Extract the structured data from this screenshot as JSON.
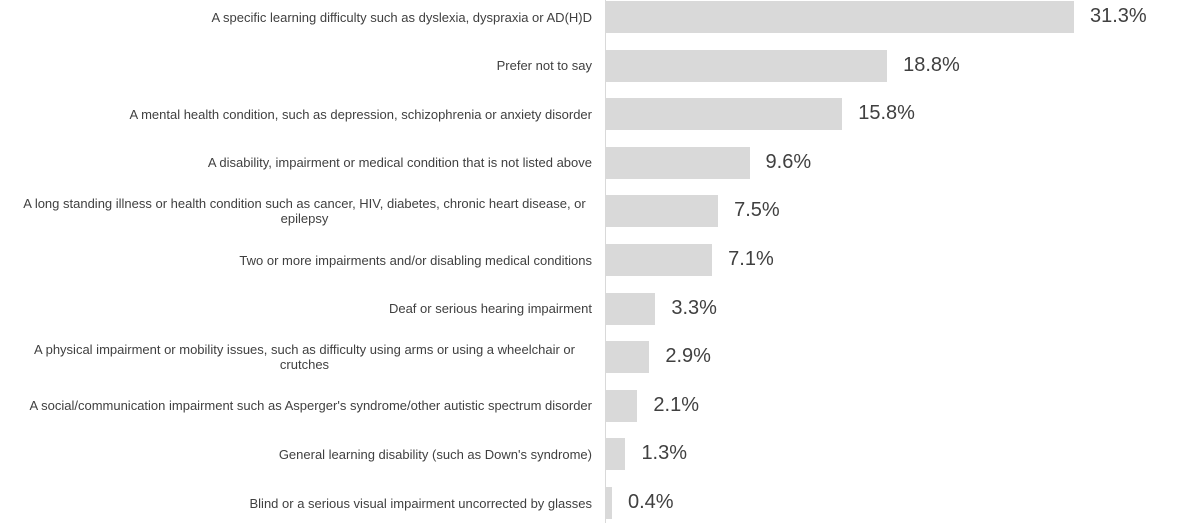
{
  "chart_data": {
    "type": "barh",
    "categories": [
      "A specific learning difficulty such as dyslexia, dyspraxia or AD(H)D",
      "Prefer not to say",
      "A mental health condition, such as depression, schizophrenia or anxiety disorder",
      "A disability, impairment or medical condition that is not listed above",
      "A long standing illness or health condition such as cancer, HIV, diabetes, chronic heart disease, or epilepsy",
      "Two or more impairments and/or disabling medical conditions",
      "Deaf or serious hearing impairment",
      "A physical impairment or mobility issues, such as difficulty using arms or using a wheelchair or crutches",
      "A social/communication impairment such as Asperger's syndrome/other autistic spectrum disorder",
      "General learning disability (such as Down's syndrome)",
      "Blind or a serious visual impairment uncorrected by glasses"
    ],
    "values": [
      31.3,
      18.8,
      15.8,
      9.6,
      7.5,
      7.1,
      3.3,
      2.9,
      2.1,
      1.3,
      0.4
    ],
    "value_labels": [
      "31.3%",
      "18.8%",
      "15.8%",
      "9.6%",
      "7.5%",
      "7.1%",
      "3.3%",
      "2.9%",
      "2.1%",
      "1.3%",
      "0.4%"
    ],
    "color": "#d9d9d9"
  }
}
